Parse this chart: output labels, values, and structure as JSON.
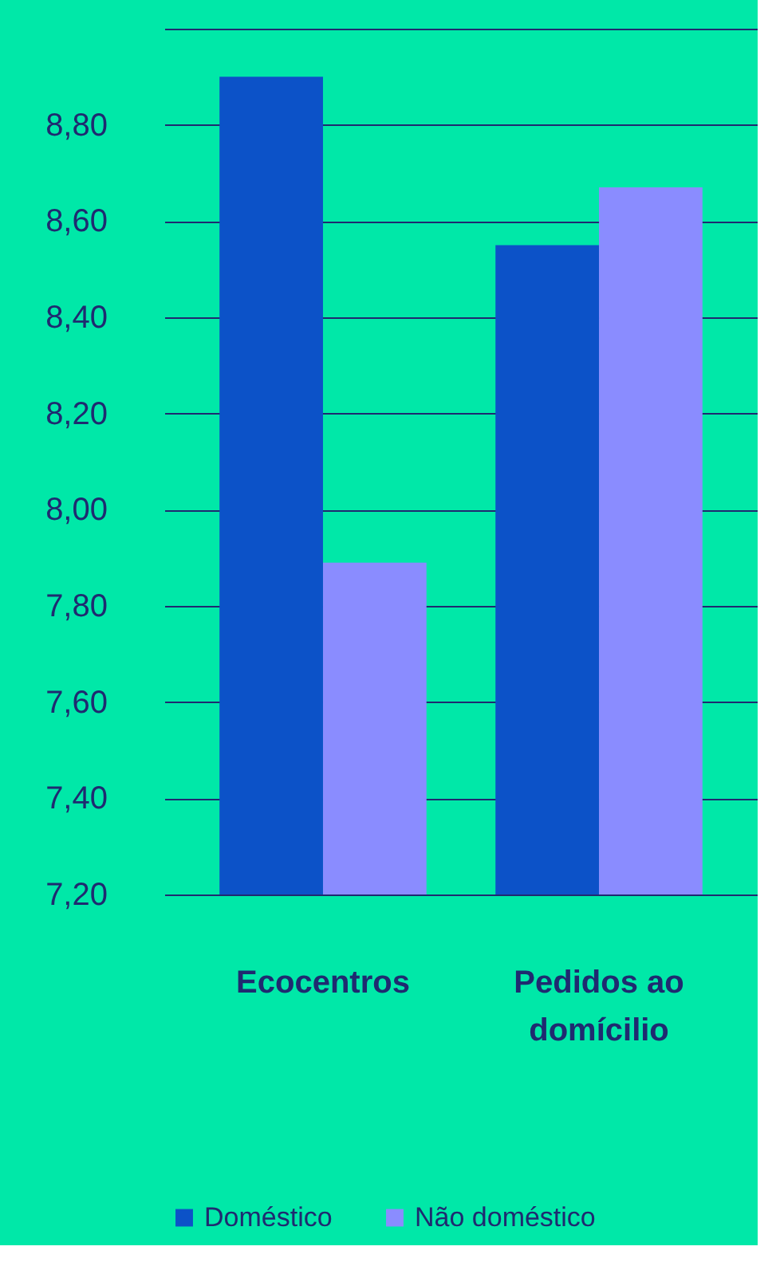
{
  "chart_data": {
    "type": "bar",
    "categories": [
      "Ecocentros",
      "Pedidos ao domícilio"
    ],
    "series": [
      {
        "name": "Doméstico",
        "color": "#0c52c8",
        "values": [
          8.9,
          8.55
        ]
      },
      {
        "name": "Não doméstico",
        "color": "#8a8cff",
        "values": [
          7.89,
          8.67
        ]
      }
    ],
    "ylim": [
      7.2,
      9.0
    ],
    "yticks": [
      {
        "value": 7.2,
        "label": "7,20"
      },
      {
        "value": 7.4,
        "label": "7,40"
      },
      {
        "value": 7.6,
        "label": "7,60"
      },
      {
        "value": 7.8,
        "label": "7,80"
      },
      {
        "value": 8.0,
        "label": "8,00"
      },
      {
        "value": 8.2,
        "label": "8,20"
      },
      {
        "value": 8.4,
        "label": "8,40"
      },
      {
        "value": 8.6,
        "label": "8,60"
      },
      {
        "value": 8.8,
        "label": "8,80"
      },
      {
        "value": 9.0,
        "label": null
      }
    ],
    "grid": "y",
    "legend": "bottom"
  }
}
